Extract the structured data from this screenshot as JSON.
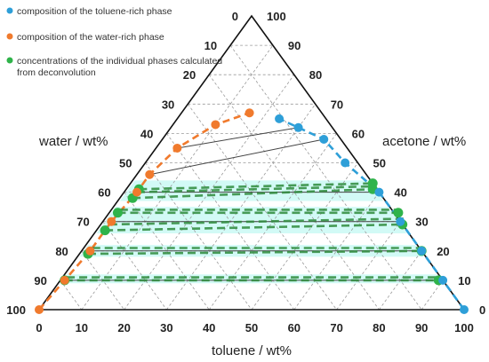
{
  "chart_data": {
    "type": "scatter",
    "subtype": "ternary",
    "axes": {
      "bottom": {
        "label": "toluene / wt%",
        "ticks": [
          "0",
          "10",
          "20",
          "30",
          "40",
          "50",
          "60",
          "70",
          "80",
          "90",
          "100"
        ]
      },
      "left": {
        "label": "water / wt%",
        "ticks": [
          "0",
          "10",
          "20",
          "30",
          "40",
          "50",
          "60",
          "70",
          "80",
          "90",
          "100"
        ]
      },
      "right": {
        "label": "acetone / wt%",
        "ticks": [
          "0",
          "10",
          "20",
          "30",
          "40",
          "50",
          "60",
          "70",
          "80",
          "90",
          "100"
        ]
      }
    },
    "grid": true,
    "legend_position": "top-left",
    "series": [
      {
        "name": "composition of the toluene-rich phase",
        "color": "#2e9fd8",
        "points": [
          {
            "toluene": 100,
            "acetone": 0
          },
          {
            "toluene": 90,
            "acetone": 10
          },
          {
            "toluene": 80,
            "acetone": 20
          },
          {
            "toluene": 70,
            "acetone": 30
          },
          {
            "toluene": 60,
            "acetone": 40
          },
          {
            "toluene": 47,
            "acetone": 50
          },
          {
            "toluene": 38,
            "acetone": 58
          },
          {
            "toluene": 30,
            "acetone": 62
          },
          {
            "toluene": 24,
            "acetone": 65
          }
        ]
      },
      {
        "name": "composition of the water-rich phase",
        "color": "#f07a2d",
        "points": [
          {
            "toluene": 0,
            "acetone": 0
          },
          {
            "toluene": 1,
            "acetone": 10
          },
          {
            "toluene": 2,
            "acetone": 20
          },
          {
            "toluene": 2,
            "acetone": 30
          },
          {
            "toluene": 3,
            "acetone": 40
          },
          {
            "toluene": 3,
            "acetone": 46
          },
          {
            "toluene": 5,
            "acetone": 55
          },
          {
            "toluene": 10,
            "acetone": 63
          },
          {
            "toluene": 16,
            "acetone": 67
          }
        ]
      },
      {
        "name": "concentrations of the individual phases calculated from deconvolution",
        "color": "#2fb34a",
        "points": [
          {
            "toluene": 1,
            "acetone": 10
          },
          {
            "toluene": 89,
            "acetone": 10
          },
          {
            "toluene": 2,
            "acetone": 19
          },
          {
            "toluene": 80,
            "acetone": 20
          },
          {
            "toluene": 2,
            "acetone": 27
          },
          {
            "toluene": 71,
            "acetone": 29
          },
          {
            "toluene": 2,
            "acetone": 33
          },
          {
            "toluene": 68,
            "acetone": 33
          },
          {
            "toluene": 3,
            "acetone": 38
          },
          {
            "toluene": 58,
            "acetone": 41
          },
          {
            "toluene": 3,
            "acetone": 41
          },
          {
            "toluene": 57,
            "acetone": 43
          }
        ]
      }
    ],
    "tie_lines": [
      {
        "a": {
          "toluene": 30,
          "acetone": 62
        },
        "b": {
          "toluene": 5,
          "acetone": 55
        }
      },
      {
        "a": {
          "toluene": 38,
          "acetone": 58
        },
        "b": {
          "toluene": 3,
          "acetone": 46
        }
      },
      {
        "a": {
          "toluene": 60,
          "acetone": 40
        },
        "b": {
          "toluene": 3,
          "acetone": 40
        }
      },
      {
        "a": {
          "toluene": 70,
          "acetone": 30
        },
        "b": {
          "toluene": 2,
          "acetone": 30
        }
      },
      {
        "a": {
          "toluene": 80,
          "acetone": 20
        },
        "b": {
          "toluene": 2,
          "acetone": 20
        }
      },
      {
        "a": {
          "toluene": 90,
          "acetone": 10
        },
        "b": {
          "toluene": 1,
          "acetone": 10
        }
      }
    ],
    "deconvolution_lines": [
      {
        "a": {
          "toluene": 1,
          "acetone": 10
        },
        "b": {
          "toluene": 89,
          "acetone": 10
        }
      },
      {
        "a": {
          "toluene": 1,
          "acetone": 11
        },
        "b": {
          "toluene": 89,
          "acetone": 11
        }
      },
      {
        "a": {
          "toluene": 2,
          "acetone": 19
        },
        "b": {
          "toluene": 80,
          "acetone": 20
        }
      },
      {
        "a": {
          "toluene": 2,
          "acetone": 21
        },
        "b": {
          "toluene": 80,
          "acetone": 21
        }
      },
      {
        "a": {
          "toluene": 2,
          "acetone": 27
        },
        "b": {
          "toluene": 71,
          "acetone": 29
        }
      },
      {
        "a": {
          "toluene": 2,
          "acetone": 29
        },
        "b": {
          "toluene": 71,
          "acetone": 31
        }
      },
      {
        "a": {
          "toluene": 2,
          "acetone": 33
        },
        "b": {
          "toluene": 68,
          "acetone": 33
        }
      },
      {
        "a": {
          "toluene": 2,
          "acetone": 34
        },
        "b": {
          "toluene": 68,
          "acetone": 34
        }
      },
      {
        "a": {
          "toluene": 3,
          "acetone": 38
        },
        "b": {
          "toluene": 58,
          "acetone": 41
        }
      },
      {
        "a": {
          "toluene": 3,
          "acetone": 40
        },
        "b": {
          "toluene": 58,
          "acetone": 42
        }
      },
      {
        "a": {
          "toluene": 3,
          "acetone": 41
        },
        "b": {
          "toluene": 57,
          "acetone": 43
        }
      }
    ],
    "highlight_color": "#7ff2e4"
  }
}
